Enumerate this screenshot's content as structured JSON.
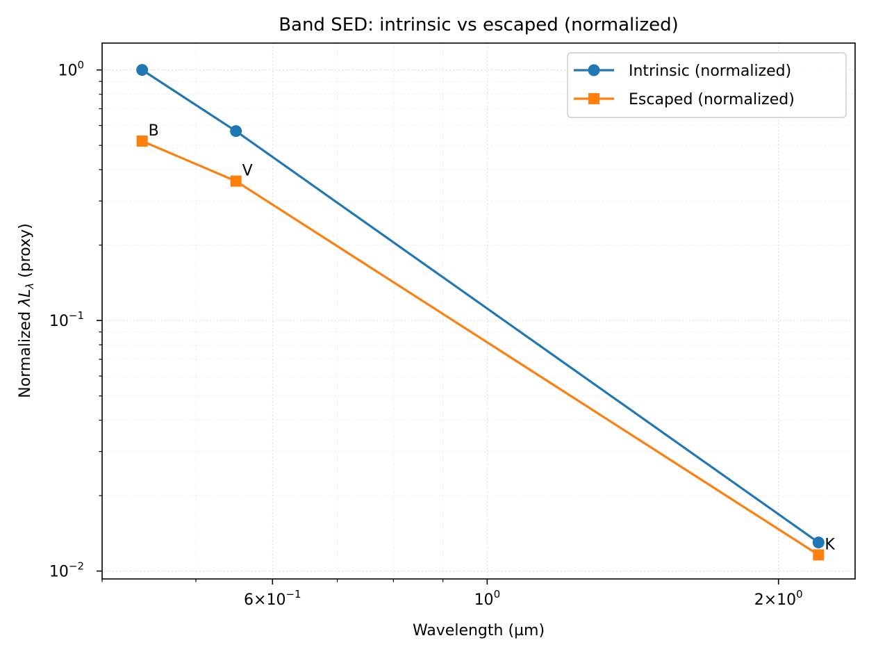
{
  "chart_data": {
    "type": "line",
    "title": "Band SED: intrinsic vs escaped (normalized)",
    "xlabel": "Wavelength (µm)",
    "ylabel_prefix": "Normalized ",
    "ylabel_symbol": "λL",
    "ylabel_subscript": "λ",
    "ylabel_suffix": " (proxy)",
    "x_scale": "log",
    "y_scale": "log",
    "xlim": [
      0.4,
      2.4
    ],
    "ylim": [
      0.0093,
      1.28
    ],
    "grid": true,
    "legend_position": "upper right",
    "x_tick_labels": [
      {
        "value": 0.6,
        "mantissa": "6",
        "exponent": "−1"
      },
      {
        "value": 1.0,
        "mantissa": "",
        "exponent": "0"
      },
      {
        "value": 2.0,
        "mantissa": "2",
        "exponent": "0"
      }
    ],
    "y_tick_labels": [
      {
        "value": 1.0,
        "exponent": "0"
      },
      {
        "value": 0.1,
        "exponent": "−1"
      },
      {
        "value": 0.01,
        "exponent": "−2"
      }
    ],
    "x": [
      0.44,
      0.55,
      2.2
    ],
    "point_labels": [
      "B",
      "V",
      "K"
    ],
    "series": [
      {
        "name": "Intrinsic (normalized)",
        "values": [
          1.0,
          0.57,
          0.013
        ],
        "color": "#1f77b4",
        "marker": "circle"
      },
      {
        "name": "Escaped (normalized)",
        "values": [
          0.52,
          0.36,
          0.0116
        ],
        "color": "#ff7f0e",
        "marker": "square"
      }
    ]
  }
}
